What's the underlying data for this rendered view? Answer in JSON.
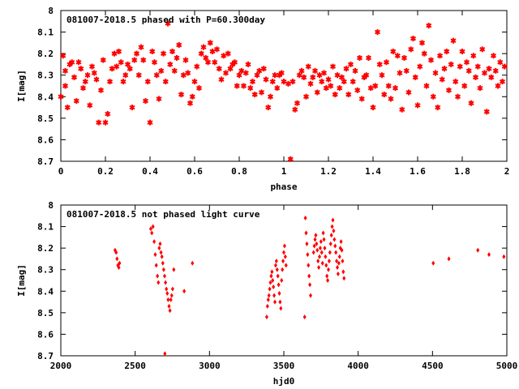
{
  "charts": [
    {
      "type": "scatter",
      "title": "081007-2018.5 phased with P=60.300day",
      "xlabel": "phase",
      "ylabel": "I[mag]",
      "xlim": [
        0,
        2
      ],
      "ylim": [
        8,
        8.7
      ],
      "y_inverted": true,
      "x_ticks": [
        "0",
        "0.2",
        "0.4",
        "0.6",
        "0.8",
        "1",
        "1.2",
        "1.4",
        "1.6",
        "1.8",
        "2"
      ],
      "y_ticks": [
        "8",
        "8.1",
        "8.2",
        "8.3",
        "8.4",
        "8.5",
        "8.6",
        "8.7"
      ],
      "marker": "asterisk",
      "color": "#ff0000",
      "grid": false,
      "points": [
        [
          0.0,
          8.4
        ],
        [
          0.01,
          8.21
        ],
        [
          0.02,
          8.28
        ],
        [
          0.03,
          8.45
        ],
        [
          0.02,
          8.35
        ],
        [
          0.04,
          8.25
        ],
        [
          0.05,
          8.24
        ],
        [
          0.06,
          8.31
        ],
        [
          0.07,
          8.42
        ],
        [
          0.08,
          8.24
        ],
        [
          0.09,
          8.27
        ],
        [
          0.1,
          8.36
        ],
        [
          0.11,
          8.33
        ],
        [
          0.12,
          8.3
        ],
        [
          0.13,
          8.44
        ],
        [
          0.14,
          8.26
        ],
        [
          0.15,
          8.29
        ],
        [
          0.16,
          8.32
        ],
        [
          0.17,
          8.52
        ],
        [
          0.18,
          8.37
        ],
        [
          0.19,
          8.23
        ],
        [
          0.2,
          8.52
        ],
        [
          0.21,
          8.48
        ],
        [
          0.22,
          8.33
        ],
        [
          0.23,
          8.27
        ],
        [
          0.24,
          8.2
        ],
        [
          0.25,
          8.26
        ],
        [
          0.26,
          8.19
        ],
        [
          0.27,
          8.24
        ],
        [
          0.28,
          8.33
        ],
        [
          0.29,
          8.3
        ],
        [
          0.3,
          8.25
        ],
        [
          0.31,
          8.27
        ],
        [
          0.32,
          8.45
        ],
        [
          0.33,
          8.23
        ],
        [
          0.34,
          8.2
        ],
        [
          0.35,
          8.3
        ],
        [
          0.36,
          8.17
        ],
        [
          0.37,
          8.23
        ],
        [
          0.38,
          8.42
        ],
        [
          0.39,
          8.33
        ],
        [
          0.4,
          8.52
        ],
        [
          0.41,
          8.19
        ],
        [
          0.42,
          8.24
        ],
        [
          0.43,
          8.3
        ],
        [
          0.44,
          8.41
        ],
        [
          0.45,
          8.28
        ],
        [
          0.46,
          8.2
        ],
        [
          0.47,
          8.33
        ],
        [
          0.48,
          8.06
        ],
        [
          0.49,
          8.25
        ],
        [
          0.5,
          8.19
        ],
        [
          0.51,
          8.28
        ],
        [
          0.52,
          8.22
        ],
        [
          0.53,
          8.16
        ],
        [
          0.54,
          8.39
        ],
        [
          0.55,
          8.3
        ],
        [
          0.56,
          8.23
        ],
        [
          0.57,
          8.29
        ],
        [
          0.58,
          8.43
        ],
        [
          0.59,
          8.4
        ],
        [
          0.6,
          8.33
        ],
        [
          0.61,
          8.26
        ],
        [
          0.62,
          8.36
        ],
        [
          0.63,
          8.2
        ],
        [
          0.64,
          8.17
        ],
        [
          0.65,
          8.22
        ],
        [
          0.66,
          8.24
        ],
        [
          0.67,
          8.15
        ],
        [
          0.68,
          8.19
        ],
        [
          0.69,
          8.24
        ],
        [
          0.7,
          8.18
        ],
        [
          0.71,
          8.27
        ],
        [
          0.72,
          8.32
        ],
        [
          0.73,
          8.21
        ],
        [
          0.74,
          8.29
        ],
        [
          0.75,
          8.2
        ],
        [
          0.76,
          8.27
        ],
        [
          0.77,
          8.25
        ],
        [
          0.78,
          8.24
        ],
        [
          0.79,
          8.35
        ],
        [
          0.8,
          8.3
        ],
        [
          0.81,
          8.28
        ],
        [
          0.82,
          8.35
        ],
        [
          0.83,
          8.29
        ],
        [
          0.84,
          8.25
        ],
        [
          0.85,
          8.36
        ],
        [
          0.86,
          8.33
        ],
        [
          0.87,
          8.39
        ],
        [
          0.88,
          8.3
        ],
        [
          0.89,
          8.28
        ],
        [
          0.9,
          8.38
        ],
        [
          0.91,
          8.27
        ],
        [
          0.92,
          8.32
        ],
        [
          0.93,
          8.45
        ],
        [
          0.94,
          8.4
        ],
        [
          0.95,
          8.33
        ],
        [
          0.96,
          8.3
        ],
        [
          0.97,
          8.36
        ],
        [
          0.98,
          8.3
        ],
        [
          0.99,
          8.29
        ],
        [
          1.0,
          8.33
        ],
        [
          1.02,
          8.34
        ],
        [
          1.03,
          8.69
        ],
        [
          1.04,
          8.33
        ],
        [
          1.05,
          8.46
        ],
        [
          1.06,
          8.43
        ],
        [
          1.07,
          8.3
        ],
        [
          1.08,
          8.28
        ],
        [
          1.09,
          8.31
        ],
        [
          1.1,
          8.4
        ],
        [
          1.11,
          8.26
        ],
        [
          1.12,
          8.34
        ],
        [
          1.13,
          8.31
        ],
        [
          1.14,
          8.28
        ],
        [
          1.15,
          8.38
        ],
        [
          1.16,
          8.3
        ],
        [
          1.17,
          8.33
        ],
        [
          1.18,
          8.29
        ],
        [
          1.19,
          8.36
        ],
        [
          1.2,
          8.32
        ],
        [
          1.21,
          8.35
        ],
        [
          1.22,
          8.26
        ],
        [
          1.23,
          8.39
        ],
        [
          1.24,
          8.3
        ],
        [
          1.25,
          8.36
        ],
        [
          1.26,
          8.31
        ],
        [
          1.27,
          8.33
        ],
        [
          1.28,
          8.27
        ],
        [
          1.29,
          8.39
        ],
        [
          1.3,
          8.25
        ],
        [
          1.31,
          8.33
        ],
        [
          1.32,
          8.28
        ],
        [
          1.33,
          8.37
        ],
        [
          1.34,
          8.22
        ],
        [
          1.35,
          8.41
        ],
        [
          1.36,
          8.31
        ],
        [
          1.37,
          8.3
        ],
        [
          1.38,
          8.22
        ],
        [
          1.39,
          8.36
        ],
        [
          1.4,
          8.45
        ],
        [
          1.41,
          8.35
        ],
        [
          1.42,
          8.1
        ],
        [
          1.43,
          8.25
        ],
        [
          1.44,
          8.3
        ],
        [
          1.45,
          8.39
        ],
        [
          1.46,
          8.24
        ],
        [
          1.47,
          8.35
        ],
        [
          1.48,
          8.41
        ],
        [
          1.49,
          8.19
        ],
        [
          1.5,
          8.36
        ],
        [
          1.51,
          8.21
        ],
        [
          1.52,
          8.29
        ],
        [
          1.53,
          8.46
        ],
        [
          1.54,
          8.22
        ],
        [
          1.55,
          8.28
        ],
        [
          1.56,
          8.38
        ],
        [
          1.57,
          8.18
        ],
        [
          1.58,
          8.13
        ],
        [
          1.59,
          8.31
        ],
        [
          1.6,
          8.44
        ],
        [
          1.61,
          8.26
        ],
        [
          1.62,
          8.15
        ],
        [
          1.63,
          8.2
        ],
        [
          1.64,
          8.35
        ],
        [
          1.65,
          8.07
        ],
        [
          1.66,
          8.23
        ],
        [
          1.67,
          8.4
        ],
        [
          1.68,
          8.29
        ],
        [
          1.69,
          8.45
        ],
        [
          1.7,
          8.21
        ],
        [
          1.71,
          8.32
        ],
        [
          1.72,
          8.27
        ],
        [
          1.73,
          8.19
        ],
        [
          1.74,
          8.37
        ],
        [
          1.75,
          8.25
        ],
        [
          1.76,
          8.14
        ],
        [
          1.77,
          8.33
        ],
        [
          1.78,
          8.4
        ],
        [
          1.79,
          8.26
        ],
        [
          1.8,
          8.19
        ],
        [
          1.81,
          8.35
        ],
        [
          1.82,
          8.24
        ],
        [
          1.83,
          8.28
        ],
        [
          1.84,
          8.43
        ],
        [
          1.85,
          8.21
        ],
        [
          1.86,
          8.31
        ],
        [
          1.87,
          8.26
        ],
        [
          1.88,
          8.36
        ],
        [
          1.89,
          8.18
        ],
        [
          1.9,
          8.29
        ],
        [
          1.91,
          8.47
        ],
        [
          1.92,
          8.27
        ],
        [
          1.93,
          8.31
        ],
        [
          1.94,
          8.21
        ],
        [
          1.95,
          8.28
        ],
        [
          1.96,
          8.35
        ],
        [
          1.97,
          8.24
        ],
        [
          1.98,
          8.33
        ],
        [
          1.99,
          8.26
        ]
      ]
    },
    {
      "type": "scatter",
      "title": "081007-2018.5 not phased light curve",
      "xlabel": "hjd0",
      "ylabel": "I[mag]",
      "xlim": [
        2000,
        5000
      ],
      "ylim": [
        8,
        8.7
      ],
      "y_inverted": true,
      "x_ticks": [
        "2000",
        "2500",
        "3000",
        "3500",
        "4000",
        "4500",
        "5000"
      ],
      "y_ticks": [
        "8",
        "8.1",
        "8.2",
        "8.3",
        "8.4",
        "8.5",
        "8.6",
        "8.7"
      ],
      "marker": "diamond",
      "color": "#ff0000",
      "grid": false,
      "points": [
        [
          2365,
          8.21
        ],
        [
          2372,
          8.22
        ],
        [
          2378,
          8.25
        ],
        [
          2384,
          8.28
        ],
        [
          2390,
          8.29
        ],
        [
          2395,
          8.27
        ],
        [
          2605,
          8.11
        ],
        [
          2612,
          8.13
        ],
        [
          2620,
          8.1
        ],
        [
          2628,
          8.17
        ],
        [
          2635,
          8.23
        ],
        [
          2642,
          8.28
        ],
        [
          2650,
          8.33
        ],
        [
          2656,
          8.36
        ],
        [
          2662,
          8.2
        ],
        [
          2668,
          8.18
        ],
        [
          2674,
          8.22
        ],
        [
          2680,
          8.24
        ],
        [
          2686,
          8.27
        ],
        [
          2692,
          8.3
        ],
        [
          2698,
          8.33
        ],
        [
          2704,
          8.36
        ],
        [
          2710,
          8.39
        ],
        [
          2716,
          8.41
        ],
        [
          2722,
          8.44
        ],
        [
          2728,
          8.47
        ],
        [
          2734,
          8.49
        ],
        [
          2740,
          8.44
        ],
        [
          2746,
          8.42
        ],
        [
          2752,
          8.39
        ],
        [
          2700,
          8.69
        ],
        [
          2760,
          8.3
        ],
        [
          2830,
          8.4
        ],
        [
          2885,
          8.27
        ],
        [
          3385,
          8.52
        ],
        [
          3390,
          8.47
        ],
        [
          3395,
          8.44
        ],
        [
          3400,
          8.42
        ],
        [
          3405,
          8.39
        ],
        [
          3410,
          8.36
        ],
        [
          3415,
          8.33
        ],
        [
          3420,
          8.31
        ],
        [
          3425,
          8.35
        ],
        [
          3430,
          8.38
        ],
        [
          3435,
          8.42
        ],
        [
          3440,
          8.45
        ],
        [
          3445,
          8.28
        ],
        [
          3450,
          8.26
        ],
        [
          3455,
          8.3
        ],
        [
          3460,
          8.33
        ],
        [
          3465,
          8.37
        ],
        [
          3470,
          8.41
        ],
        [
          3475,
          8.45
        ],
        [
          3480,
          8.48
        ],
        [
          3485,
          8.35
        ],
        [
          3490,
          8.3
        ],
        [
          3495,
          8.26
        ],
        [
          3500,
          8.22
        ],
        [
          3505,
          8.19
        ],
        [
          3510,
          8.24
        ],
        [
          3515,
          8.28
        ],
        [
          3640,
          8.52
        ],
        [
          3645,
          8.06
        ],
        [
          3650,
          8.13
        ],
        [
          3655,
          8.18
        ],
        [
          3660,
          8.23
        ],
        [
          3665,
          8.28
        ],
        [
          3670,
          8.33
        ],
        [
          3675,
          8.37
        ],
        [
          3680,
          8.42
        ],
        [
          3700,
          8.22
        ],
        [
          3705,
          8.19
        ],
        [
          3710,
          8.16
        ],
        [
          3715,
          8.14
        ],
        [
          3720,
          8.18
        ],
        [
          3725,
          8.21
        ],
        [
          3730,
          8.26
        ],
        [
          3735,
          8.29
        ],
        [
          3740,
          8.24
        ],
        [
          3745,
          8.2
        ],
        [
          3750,
          8.17
        ],
        [
          3755,
          8.22
        ],
        [
          3760,
          8.27
        ],
        [
          3765,
          8.13
        ],
        [
          3770,
          8.16
        ],
        [
          3775,
          8.2
        ],
        [
          3780,
          8.24
        ],
        [
          3785,
          8.28
        ],
        [
          3790,
          8.33
        ],
        [
          3795,
          8.35
        ],
        [
          3800,
          8.3
        ],
        [
          3805,
          8.26
        ],
        [
          3810,
          8.22
        ],
        [
          3815,
          8.18
        ],
        [
          3820,
          8.14
        ],
        [
          3825,
          8.1
        ],
        [
          3830,
          8.07
        ],
        [
          3835,
          8.12
        ],
        [
          3840,
          8.16
        ],
        [
          3845,
          8.19
        ],
        [
          3850,
          8.22
        ],
        [
          3855,
          8.26
        ],
        [
          3860,
          8.29
        ],
        [
          3865,
          8.32
        ],
        [
          3870,
          8.27
        ],
        [
          3875,
          8.24
        ],
        [
          3880,
          8.2
        ],
        [
          3885,
          8.17
        ],
        [
          3890,
          8.21
        ],
        [
          3895,
          8.26
        ],
        [
          3900,
          8.31
        ],
        [
          3905,
          8.34
        ],
        [
          4505,
          8.27
        ],
        [
          4610,
          8.25
        ],
        [
          4805,
          8.21
        ],
        [
          4880,
          8.23
        ],
        [
          4980,
          8.24
        ]
      ]
    }
  ]
}
